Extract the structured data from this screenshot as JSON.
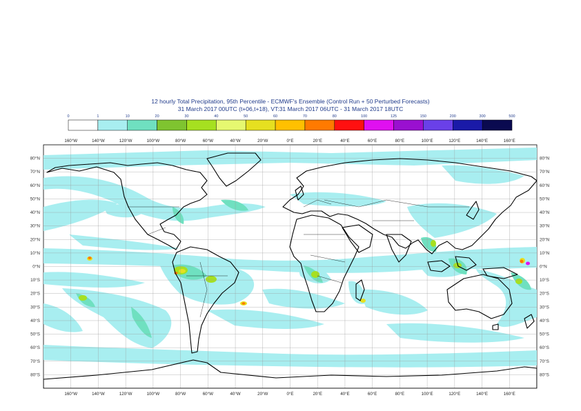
{
  "header": {
    "title": "12 hourly Total Precipitation, 95th Percentile - ECMWF's Ensemble (Control Run + 50 Perturbed Forecasts)",
    "subtitle": "31 March 2017 00UTC (t+06,t+18), VT:31 March 2017 06UTC - 31 March 2017 18UTC"
  },
  "legend": {
    "thresholds": [
      "0",
      "1",
      "10",
      "20",
      "30",
      "40",
      "50",
      "60",
      "70",
      "80",
      "100",
      "125",
      "150",
      "200",
      "300",
      "500"
    ],
    "colors": [
      "#ffffff",
      "#a8eef0",
      "#6fe0c0",
      "#7fc430",
      "#a6e020",
      "#e6f870",
      "#e6e020",
      "#ffc000",
      "#ff7a00",
      "#ff1010",
      "#e010f0",
      "#9a10d0",
      "#6a40e8",
      "#1a1aa8",
      "#0a0a50"
    ]
  },
  "map": {
    "lon_labels_top": [
      "160°W",
      "140°W",
      "120°W",
      "100°W",
      "80°W",
      "60°W",
      "40°W",
      "20°W",
      "0°E",
      "20°E",
      "40°E",
      "60°E",
      "80°E",
      "100°E",
      "120°E",
      "140°E",
      "160°E"
    ],
    "lon_labels_bottom": [
      "160°W",
      "140°W",
      "120°W",
      "100°W",
      "80°W",
      "60°W",
      "40°W",
      "20°W",
      "0°E",
      "20°E",
      "40°E",
      "60°E",
      "80°E",
      "100°E",
      "120°E",
      "140°E",
      "160°E"
    ],
    "lat_labels": [
      "80°N",
      "70°N",
      "60°N",
      "50°N",
      "40°N",
      "30°N",
      "20°N",
      "10°N",
      "0°N",
      "10°S",
      "20°S",
      "30°S",
      "40°S",
      "50°S",
      "60°S",
      "70°S",
      "80°S"
    ]
  }
}
